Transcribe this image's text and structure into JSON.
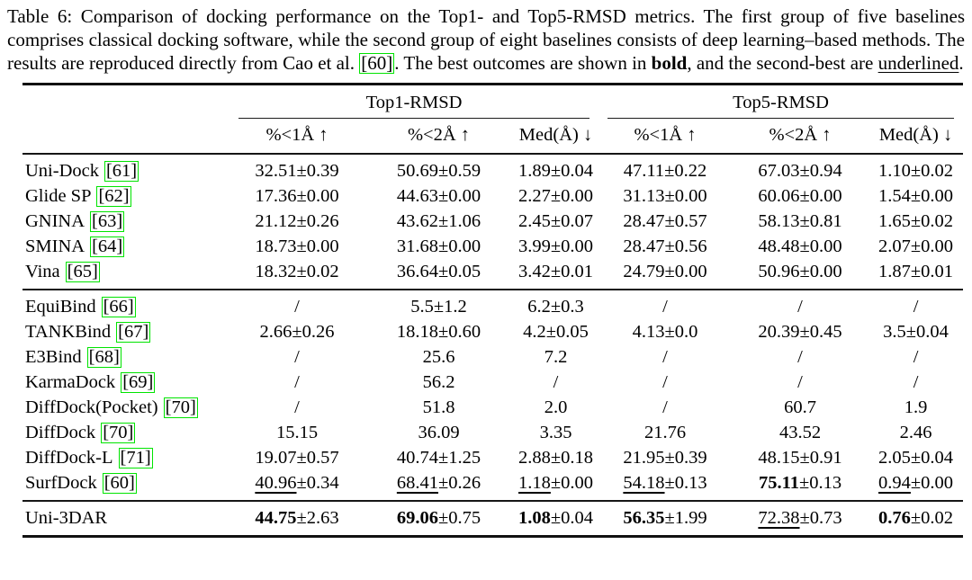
{
  "page": {
    "background": "#ffffff",
    "text_color": "#000000"
  },
  "colors": {
    "citation_box_green": "#00e400",
    "rule_color": "#111111"
  },
  "caption": {
    "segments": [
      {
        "text": "Table 6: Comparison of docking performance on the Top1- and Top5-RMSD metrics. The first group of five baselines comprises classical docking software, while the second group of eight baselines consists of deep learning–based methods. The results are reproduced directly from Cao et al. ",
        "style": "normal"
      },
      {
        "text": "[60]",
        "style": "cite"
      },
      {
        "text": ". The best outcomes are shown in ",
        "style": "normal"
      },
      {
        "text": "bold",
        "style": "bold"
      },
      {
        "text": ", and the second-best are ",
        "style": "normal"
      },
      {
        "text": "underlined",
        "style": "underline"
      },
      {
        "text": ".",
        "style": "normal"
      }
    ]
  },
  "table": {
    "group_headers": [
      {
        "label": "Top1-RMSD"
      },
      {
        "label": "Top5-RMSD"
      }
    ],
    "sub_headers": [
      "%<1Å ↑",
      "%<2Å ↑",
      "Med(Å) ↓",
      "%<1Å ↑",
      "%<2Å ↑",
      "Med(Å) ↓"
    ],
    "body_groups": [
      {
        "name": "classical-docking-software",
        "rows": [
          {
            "method": "Uni-Dock",
            "cite": "[61]",
            "cells": [
              {
                "mean": "32.51",
                "std": "0.39",
                "style": "normal"
              },
              {
                "mean": "50.69",
                "std": "0.59",
                "style": "normal"
              },
              {
                "mean": "1.89",
                "std": "0.04",
                "style": "normal"
              },
              {
                "mean": "47.11",
                "std": "0.22",
                "style": "normal"
              },
              {
                "mean": "67.03",
                "std": "0.94",
                "style": "normal"
              },
              {
                "mean": "1.10",
                "std": "0.02",
                "style": "normal"
              }
            ]
          },
          {
            "method": "Glide SP",
            "cite": "[62]",
            "cells": [
              {
                "mean": "17.36",
                "std": "0.00",
                "style": "normal"
              },
              {
                "mean": "44.63",
                "std": "0.00",
                "style": "normal"
              },
              {
                "mean": "2.27",
                "std": "0.00",
                "style": "normal"
              },
              {
                "mean": "31.13",
                "std": "0.00",
                "style": "normal"
              },
              {
                "mean": "60.06",
                "std": "0.00",
                "style": "normal"
              },
              {
                "mean": "1.54",
                "std": "0.00",
                "style": "normal"
              }
            ]
          },
          {
            "method": "GNINA",
            "cite": "[63]",
            "cells": [
              {
                "mean": "21.12",
                "std": "0.26",
                "style": "normal"
              },
              {
                "mean": "43.62",
                "std": "1.06",
                "style": "normal"
              },
              {
                "mean": "2.45",
                "std": "0.07",
                "style": "normal"
              },
              {
                "mean": "28.47",
                "std": "0.57",
                "style": "normal"
              },
              {
                "mean": "58.13",
                "std": "0.81",
                "style": "normal"
              },
              {
                "mean": "1.65",
                "std": "0.02",
                "style": "normal"
              }
            ]
          },
          {
            "method": "SMINA",
            "cite": "[64]",
            "cells": [
              {
                "mean": "18.73",
                "std": "0.00",
                "style": "normal"
              },
              {
                "mean": "31.68",
                "std": "0.00",
                "style": "normal"
              },
              {
                "mean": "3.99",
                "std": "0.00",
                "style": "normal"
              },
              {
                "mean": "28.47",
                "std": "0.56",
                "style": "normal"
              },
              {
                "mean": "48.48",
                "std": "0.00",
                "style": "normal"
              },
              {
                "mean": "2.07",
                "std": "0.00",
                "style": "normal"
              }
            ]
          },
          {
            "method": "Vina",
            "cite": "[65]",
            "cells": [
              {
                "mean": "18.32",
                "std": "0.02",
                "style": "normal"
              },
              {
                "mean": "36.64",
                "std": "0.05",
                "style": "normal"
              },
              {
                "mean": "3.42",
                "std": "0.01",
                "style": "normal"
              },
              {
                "mean": "24.79",
                "std": "0.00",
                "style": "normal"
              },
              {
                "mean": "50.96",
                "std": "0.00",
                "style": "normal"
              },
              {
                "mean": "1.87",
                "std": "0.01",
                "style": "normal"
              }
            ]
          }
        ]
      },
      {
        "name": "deep-learning-methods",
        "rows": [
          {
            "method": "EquiBind",
            "cite": "[66]",
            "cells": [
              {
                "mean": "/",
                "style": "normal"
              },
              {
                "mean": "5.5",
                "std": "1.2",
                "style": "normal"
              },
              {
                "mean": "6.2",
                "std": "0.3",
                "style": "normal"
              },
              {
                "mean": "/",
                "style": "normal"
              },
              {
                "mean": "/",
                "style": "normal"
              },
              {
                "mean": "/",
                "style": "normal"
              }
            ]
          },
          {
            "method": "TANKBind",
            "cite": "[67]",
            "cells": [
              {
                "mean": "2.66",
                "std": "0.26",
                "style": "normal"
              },
              {
                "mean": "18.18",
                "std": "0.60",
                "style": "normal"
              },
              {
                "mean": "4.2",
                "std": "0.05",
                "style": "normal"
              },
              {
                "mean": "4.13",
                "std": "0.0",
                "style": "normal"
              },
              {
                "mean": "20.39",
                "std": "0.45",
                "style": "normal"
              },
              {
                "mean": "3.5",
                "std": "0.04",
                "style": "normal"
              }
            ]
          },
          {
            "method": "E3Bind",
            "cite": "[68]",
            "cells": [
              {
                "mean": "/",
                "style": "normal"
              },
              {
                "mean": "25.6",
                "style": "normal"
              },
              {
                "mean": "7.2",
                "style": "normal"
              },
              {
                "mean": "/",
                "style": "normal"
              },
              {
                "mean": "/",
                "style": "normal"
              },
              {
                "mean": "/",
                "style": "normal"
              }
            ]
          },
          {
            "method": "KarmaDock",
            "cite": "[69]",
            "cells": [
              {
                "mean": "/",
                "style": "normal"
              },
              {
                "mean": "56.2",
                "style": "normal"
              },
              {
                "mean": "/",
                "style": "normal"
              },
              {
                "mean": "/",
                "style": "normal"
              },
              {
                "mean": "/",
                "style": "normal"
              },
              {
                "mean": "/",
                "style": "normal"
              }
            ]
          },
          {
            "method": "DiffDock(Pocket)",
            "cite": "[70]",
            "cells": [
              {
                "mean": "/",
                "style": "normal"
              },
              {
                "mean": "51.8",
                "style": "normal"
              },
              {
                "mean": "2.0",
                "style": "normal"
              },
              {
                "mean": "/",
                "style": "normal"
              },
              {
                "mean": "60.7",
                "style": "normal"
              },
              {
                "mean": "1.9",
                "style": "normal"
              }
            ]
          },
          {
            "method": "DiffDock",
            "cite": "[70]",
            "cells": [
              {
                "mean": "15.15",
                "style": "normal"
              },
              {
                "mean": "36.09",
                "style": "normal"
              },
              {
                "mean": "3.35",
                "style": "normal"
              },
              {
                "mean": "21.76",
                "style": "normal"
              },
              {
                "mean": "43.52",
                "style": "normal"
              },
              {
                "mean": "2.46",
                "style": "normal"
              }
            ]
          },
          {
            "method": "DiffDock-L",
            "cite": "[71]",
            "cells": [
              {
                "mean": "19.07",
                "std": "0.57",
                "style": "normal"
              },
              {
                "mean": "40.74",
                "std": "1.25",
                "style": "normal"
              },
              {
                "mean": "2.88",
                "std": "0.18",
                "style": "normal"
              },
              {
                "mean": "21.95",
                "std": "0.39",
                "style": "normal"
              },
              {
                "mean": "48.15",
                "std": "0.91",
                "style": "normal"
              },
              {
                "mean": "2.05",
                "std": "0.04",
                "style": "normal"
              }
            ]
          },
          {
            "method": "SurfDock",
            "cite": "[60]",
            "cells": [
              {
                "mean": "40.96",
                "std": "0.34",
                "style": "underline"
              },
              {
                "mean": "68.41",
                "std": "0.26",
                "style": "underline"
              },
              {
                "mean": "1.18",
                "std": "0.00",
                "style": "underline"
              },
              {
                "mean": "54.18",
                "std": "0.13",
                "style": "underline"
              },
              {
                "mean": "75.11",
                "std": "0.13",
                "style": "bold"
              },
              {
                "mean": "0.94",
                "std": "0.00",
                "style": "underline"
              }
            ]
          }
        ]
      },
      {
        "name": "ours",
        "rows": [
          {
            "method": "Uni-3DAR",
            "cite": null,
            "cells": [
              {
                "mean": "44.75",
                "std": "2.63",
                "style": "bold"
              },
              {
                "mean": "69.06",
                "std": "0.75",
                "style": "bold"
              },
              {
                "mean": "1.08",
                "std": "0.04",
                "style": "bold"
              },
              {
                "mean": "56.35",
                "std": "1.99",
                "style": "bold"
              },
              {
                "mean": "72.38",
                "std": "0.73",
                "style": "underline"
              },
              {
                "mean": "0.76",
                "std": "0.02",
                "style": "bold"
              }
            ]
          }
        ]
      }
    ]
  }
}
